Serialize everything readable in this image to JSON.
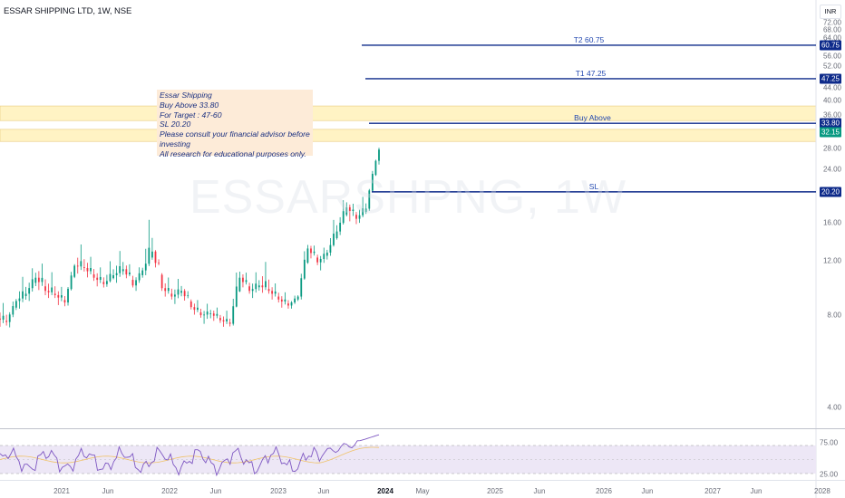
{
  "header": {
    "title": "ESSAR SHIPPING LTD, 1W, NSE"
  },
  "watermark": {
    "symbol": "ESSARSHPNG, 1W"
  },
  "currency_button": "INR",
  "note": {
    "lines": [
      "Essar Shipping",
      "Buy Above 33.80",
      "For Target : 47-60",
      "SL 20.20",
      "",
      "Please consult your financial advisor before",
      "investing",
      "All research for educational purposes only."
    ]
  },
  "colors": {
    "up": "#089981",
    "down": "#f23645",
    "level_line": "#0d2a8a",
    "zone": "#fff3c4",
    "rsi": "#7e57c2",
    "rsi_band": "#ede7f6",
    "last_price": "#089981"
  },
  "chart_data": {
    "type": "candlestick",
    "title": "ESSAR SHIPPING LTD, 1W, NSE",
    "y_axis": {
      "ticks": [
        4.0,
        8.0,
        12.0,
        16.0,
        20.0,
        24.0,
        28.0,
        32.0,
        36.0,
        40.0,
        44.0,
        48.0,
        52.0,
        56.0,
        60.0,
        64.0,
        68.0,
        72.0
      ],
      "scale": "log"
    },
    "x_axis": {
      "labels": [
        "2021",
        "Jun",
        "2022",
        "Jun",
        "2023",
        "Jun",
        "2024",
        "May",
        "2025",
        "Jun",
        "2026",
        "Jun",
        "2027",
        "Jun",
        "2028"
      ]
    },
    "levels": [
      {
        "name": "T2 60.75",
        "value": 60.75,
        "badge": "60.75"
      },
      {
        "name": "T1 47.25",
        "value": 47.25,
        "badge": "47.25"
      },
      {
        "name": "Buy Above",
        "value": 33.8,
        "badge": "33.80"
      },
      {
        "name": "SL",
        "value": 20.2,
        "badge": "20.20"
      }
    ],
    "last_price": {
      "value": 32.15,
      "badge": "32.15"
    },
    "zones": [
      {
        "from": 34.5,
        "to": 38.5
      },
      {
        "from": 29.5,
        "to": 32.3
      }
    ],
    "price_series": [
      {
        "x": "2020-10",
        "o": 7.8,
        "h": 8.6,
        "l": 7.2,
        "c": 7.6
      },
      {
        "x": "2020-11",
        "o": 7.6,
        "h": 9.2,
        "l": 7.3,
        "c": 8.9
      },
      {
        "x": "2020-12",
        "o": 8.9,
        "h": 10.5,
        "l": 8.4,
        "c": 9.4
      },
      {
        "x": "2021-01",
        "o": 9.4,
        "h": 11.5,
        "l": 8.9,
        "c": 10.6
      },
      {
        "x": "2021-02",
        "o": 10.6,
        "h": 11.8,
        "l": 9.0,
        "c": 9.6
      },
      {
        "x": "2021-03",
        "o": 9.6,
        "h": 10.8,
        "l": 8.9,
        "c": 9.3
      },
      {
        "x": "2021-04",
        "o": 9.3,
        "h": 9.9,
        "l": 8.3,
        "c": 8.8
      },
      {
        "x": "2021-05",
        "o": 8.8,
        "h": 11.9,
        "l": 8.6,
        "c": 11.6
      },
      {
        "x": "2021-06",
        "o": 11.6,
        "h": 13.2,
        "l": 10.8,
        "c": 11.4
      },
      {
        "x": "2021-07",
        "o": 11.4,
        "h": 12.4,
        "l": 10.1,
        "c": 10.6
      },
      {
        "x": "2021-08",
        "o": 10.6,
        "h": 11.4,
        "l": 9.6,
        "c": 10.1
      },
      {
        "x": "2021-09",
        "o": 10.1,
        "h": 11.9,
        "l": 9.9,
        "c": 10.8
      },
      {
        "x": "2021-10",
        "o": 10.8,
        "h": 12.7,
        "l": 10.2,
        "c": 11.3
      },
      {
        "x": "2021-11",
        "o": 11.3,
        "h": 12.0,
        "l": 9.7,
        "c": 10.0
      },
      {
        "x": "2021-12",
        "o": 10.0,
        "h": 11.7,
        "l": 9.6,
        "c": 11.2
      },
      {
        "x": "2022-01",
        "o": 11.2,
        "h": 16.0,
        "l": 10.8,
        "c": 12.9
      },
      {
        "x": "2022-02",
        "o": 12.9,
        "h": 13.2,
        "l": 9.4,
        "c": 9.8
      },
      {
        "x": "2022-03",
        "o": 9.8,
        "h": 10.6,
        "l": 8.8,
        "c": 9.2
      },
      {
        "x": "2022-04",
        "o": 9.2,
        "h": 10.4,
        "l": 8.7,
        "c": 9.6
      },
      {
        "x": "2022-05",
        "o": 9.6,
        "h": 9.9,
        "l": 8.2,
        "c": 8.5
      },
      {
        "x": "2022-06",
        "o": 8.5,
        "h": 9.0,
        "l": 7.7,
        "c": 8.0
      },
      {
        "x": "2022-07",
        "o": 8.0,
        "h": 8.6,
        "l": 7.5,
        "c": 8.1
      },
      {
        "x": "2022-08",
        "o": 8.1,
        "h": 8.5,
        "l": 7.4,
        "c": 7.7
      },
      {
        "x": "2022-09",
        "o": 7.7,
        "h": 8.2,
        "l": 7.2,
        "c": 7.5
      },
      {
        "x": "2022-10",
        "o": 7.5,
        "h": 11.7,
        "l": 7.4,
        "c": 10.6
      },
      {
        "x": "2022-11",
        "o": 10.6,
        "h": 11.2,
        "l": 9.2,
        "c": 9.6
      },
      {
        "x": "2022-12",
        "o": 9.6,
        "h": 10.9,
        "l": 9.1,
        "c": 10.0
      },
      {
        "x": "2023-01",
        "o": 10.0,
        "h": 11.6,
        "l": 9.2,
        "c": 9.6
      },
      {
        "x": "2023-02",
        "o": 9.6,
        "h": 10.2,
        "l": 8.6,
        "c": 9.0
      },
      {
        "x": "2023-03",
        "o": 9.0,
        "h": 9.5,
        "l": 8.2,
        "c": 8.6
      },
      {
        "x": "2023-04",
        "o": 8.6,
        "h": 9.4,
        "l": 8.4,
        "c": 9.2
      },
      {
        "x": "2023-05",
        "o": 9.2,
        "h": 14.0,
        "l": 9.0,
        "c": 13.2
      },
      {
        "x": "2023-06",
        "o": 13.2,
        "h": 13.8,
        "l": 11.4,
        "c": 11.9
      },
      {
        "x": "2023-07",
        "o": 11.9,
        "h": 13.4,
        "l": 11.2,
        "c": 12.8
      },
      {
        "x": "2023-08",
        "o": 12.8,
        "h": 16.6,
        "l": 12.5,
        "c": 15.0
      },
      {
        "x": "2023-09",
        "o": 15.0,
        "h": 19.5,
        "l": 14.6,
        "c": 18.0
      },
      {
        "x": "2023-10",
        "o": 18.0,
        "h": 18.8,
        "l": 15.2,
        "c": 16.5
      },
      {
        "x": "2023-11",
        "o": 16.5,
        "h": 19.4,
        "l": 16.0,
        "c": 17.8
      },
      {
        "x": "2023-12",
        "o": 17.8,
        "h": 26.0,
        "l": 17.5,
        "c": 25.5
      },
      {
        "x": "2023-12b",
        "o": 25.5,
        "h": 33.0,
        "l": 24.8,
        "c": 32.15
      }
    ],
    "rsi_axis": {
      "ticks": [
        25.0,
        75.0
      ]
    }
  },
  "time_labels": [
    "2021",
    "Jun",
    "2022",
    "Jun",
    "2023",
    "Jun",
    "2024",
    "May",
    "2025",
    "Jun",
    "2026",
    "Jun",
    "2027",
    "Jun",
    "2028"
  ]
}
